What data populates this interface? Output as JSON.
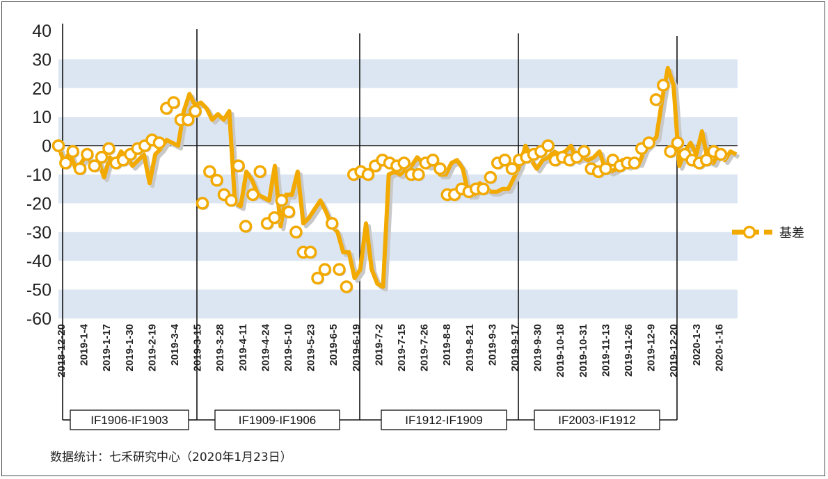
{
  "chart_data": {
    "type": "line",
    "title": "",
    "xlabel": "",
    "ylabel": "",
    "ylim": [
      -60,
      40
    ],
    "yticks": [
      "40",
      "30",
      "20",
      "10",
      "0",
      "-10",
      "-20",
      "-30",
      "-40",
      "-50",
      "-60"
    ],
    "x_tick_labels": [
      "2018-12-20",
      "2019-1-4",
      "2019-1-17",
      "2019-1-30",
      "2019-2-19",
      "2019-3-4",
      "2019-3-15",
      "2019-3-28",
      "2019-4-11",
      "2019-4-24",
      "2019-5-10",
      "2019-5-23",
      "2019-6-5",
      "2019-6-19",
      "2019-7-2",
      "2019-7-15",
      "2019-7-26",
      "2019-8-8",
      "2019-8-21",
      "2019-9-3",
      "2019-9-17",
      "2019-9-30",
      "2019-10-18",
      "2019-10-31",
      "2019-11-13",
      "2019-11-26",
      "2019-12-9",
      "2019-12-20",
      "2020-1-3",
      "2020-1-16"
    ],
    "grid": "alternating horizontal bands",
    "legend_position": "right",
    "series": [
      {
        "name": "基差",
        "color": "#F2A900",
        "values": [
          0,
          -6,
          -2,
          -8,
          -6,
          -3,
          -7,
          -5,
          -11,
          -4,
          -6,
          -2,
          -4,
          -7,
          -5,
          -3,
          -13,
          -3,
          -1,
          2,
          1,
          0,
          12,
          18,
          14,
          15,
          13,
          9,
          11,
          9,
          12,
          -20,
          -21,
          -9,
          -12,
          -17,
          -18,
          -19,
          -7,
          -28,
          -17,
          -17,
          -9,
          -27,
          -25,
          -22,
          -19,
          -23,
          -28,
          -30,
          -37,
          -37,
          -46,
          -43,
          -27,
          -43,
          -48,
          -49,
          -10,
          -9,
          -10,
          -8,
          -7,
          -4,
          -6,
          -7,
          -6,
          -10,
          -10,
          -6,
          -5,
          -8,
          -17,
          -17,
          -13,
          -15,
          -16,
          -16,
          -15,
          -15,
          -11,
          -7,
          0,
          -5,
          -8,
          -5,
          -4,
          -2,
          -3,
          -2,
          0,
          -5,
          -4,
          -5,
          -4,
          -2,
          -8,
          -9,
          -8,
          -5,
          -7,
          -6,
          -6,
          -1,
          1,
          3,
          16,
          27,
          21,
          -7,
          -2,
          1,
          -3,
          5,
          -5,
          -6,
          -2,
          -5,
          -2,
          -3
        ],
        "markers": [
          0,
          -6,
          -2,
          -8,
          -3,
          -7,
          -4,
          -1,
          -6,
          -5,
          -3,
          -1,
          0,
          2,
          1,
          13,
          15,
          9,
          9,
          12,
          -20,
          -9,
          -12,
          -17,
          -19,
          -7,
          -28,
          -17,
          -9,
          -27,
          -25,
          -19,
          -23,
          -30,
          -37,
          -37,
          -46,
          -43,
          -27,
          -43,
          -49,
          -10,
          -9,
          -10,
          -7,
          -5,
          -6,
          -7,
          -6,
          -10,
          -10,
          -6,
          -5,
          -8,
          -17,
          -17,
          -15,
          -16,
          -15,
          -15,
          -11,
          -6,
          -5,
          -8,
          -5,
          -4,
          -3,
          -2,
          0,
          -5,
          -4,
          -5,
          -4,
          -2,
          -8,
          -9,
          -8,
          -5,
          -7,
          -6,
          -6,
          -1,
          1,
          16,
          21,
          -2,
          1,
          -3,
          -5,
          -6,
          -5,
          -2,
          -3
        ]
      }
    ],
    "contract_rollovers": [
      {
        "label": "IF1906-IF1903",
        "start_tick": "2018-12-20",
        "end_tick": "2019-3-15"
      },
      {
        "label": "IF1909-IF1906",
        "start_tick": "2019-3-15",
        "end_tick": "2019-6-19"
      },
      {
        "label": "IF1912-IF1909",
        "start_tick": "2019-6-19",
        "end_tick": "2019-9-17"
      },
      {
        "label": "IF2003-IF1912",
        "start_tick": "2019-9-17",
        "end_tick": "2019-12-20"
      }
    ]
  },
  "footer": {
    "source": "数据统计：七禾研究中心（2020年1月23日）"
  }
}
